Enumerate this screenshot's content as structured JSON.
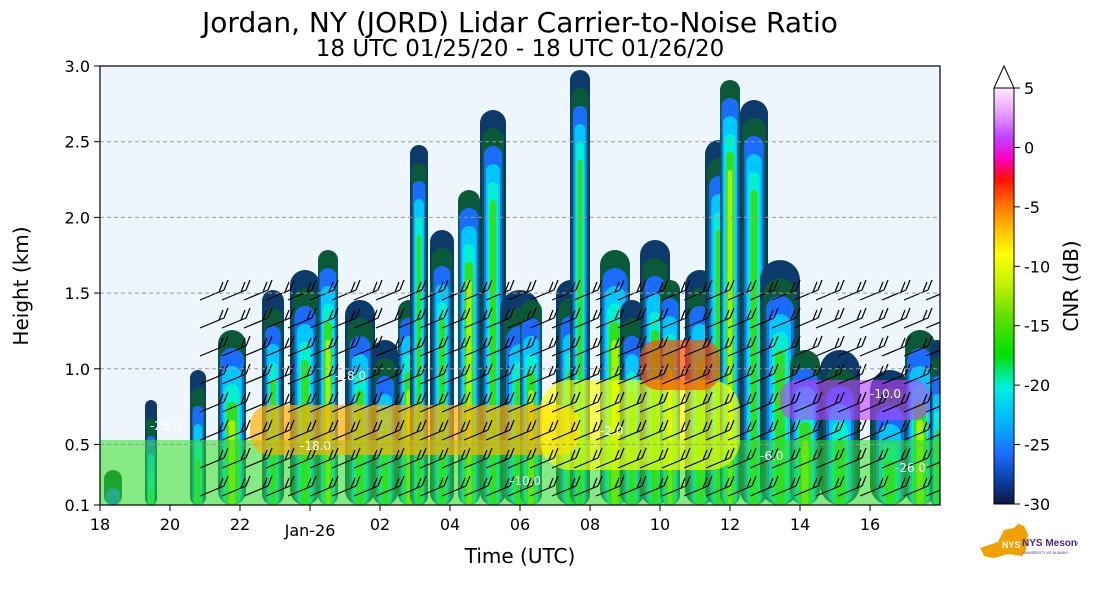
{
  "chart_data": {
    "type": "heatmap",
    "title": "Jordan, NY (JORD) Lidar Carrier-to-Noise Ratio",
    "subtitle": "18 UTC 01/25/20 - 18 UTC 01/26/20",
    "xlabel": "Time (UTC)",
    "ylabel": "Height (km)",
    "x_ticks": [
      "18",
      "20",
      "22",
      "Jan-26",
      "02",
      "04",
      "06",
      "08",
      "10",
      "12",
      "14",
      "16"
    ],
    "x_range_hours_utc": [
      "18 UTC 01/25/20",
      "18 UTC 01/26/20"
    ],
    "y_ticks": [
      "0.1",
      "0.5",
      "1.0",
      "1.5",
      "2.0",
      "2.5",
      "3.0"
    ],
    "ylim": [
      0.1,
      3.0
    ],
    "grid": "horizontal dashed",
    "colorbar": {
      "label": "CNR (dB)",
      "ticks": [
        "5",
        "0",
        "-5",
        "-10",
        "-15",
        "-20",
        "-25",
        "-30"
      ],
      "range": [
        -30,
        5
      ],
      "extend": "max"
    },
    "contour_labels": [
      "-26.0",
      "-18.0",
      "-10.0",
      "-2.0",
      "-6.0"
    ],
    "overlay": "wind barbs"
  },
  "logo": {
    "text": "NYS Mesonet",
    "subtext": "UNIVERSITY AT ALBANY"
  },
  "colors": {
    "background_low": "#eef6fd",
    "accent": "#f0a000"
  }
}
